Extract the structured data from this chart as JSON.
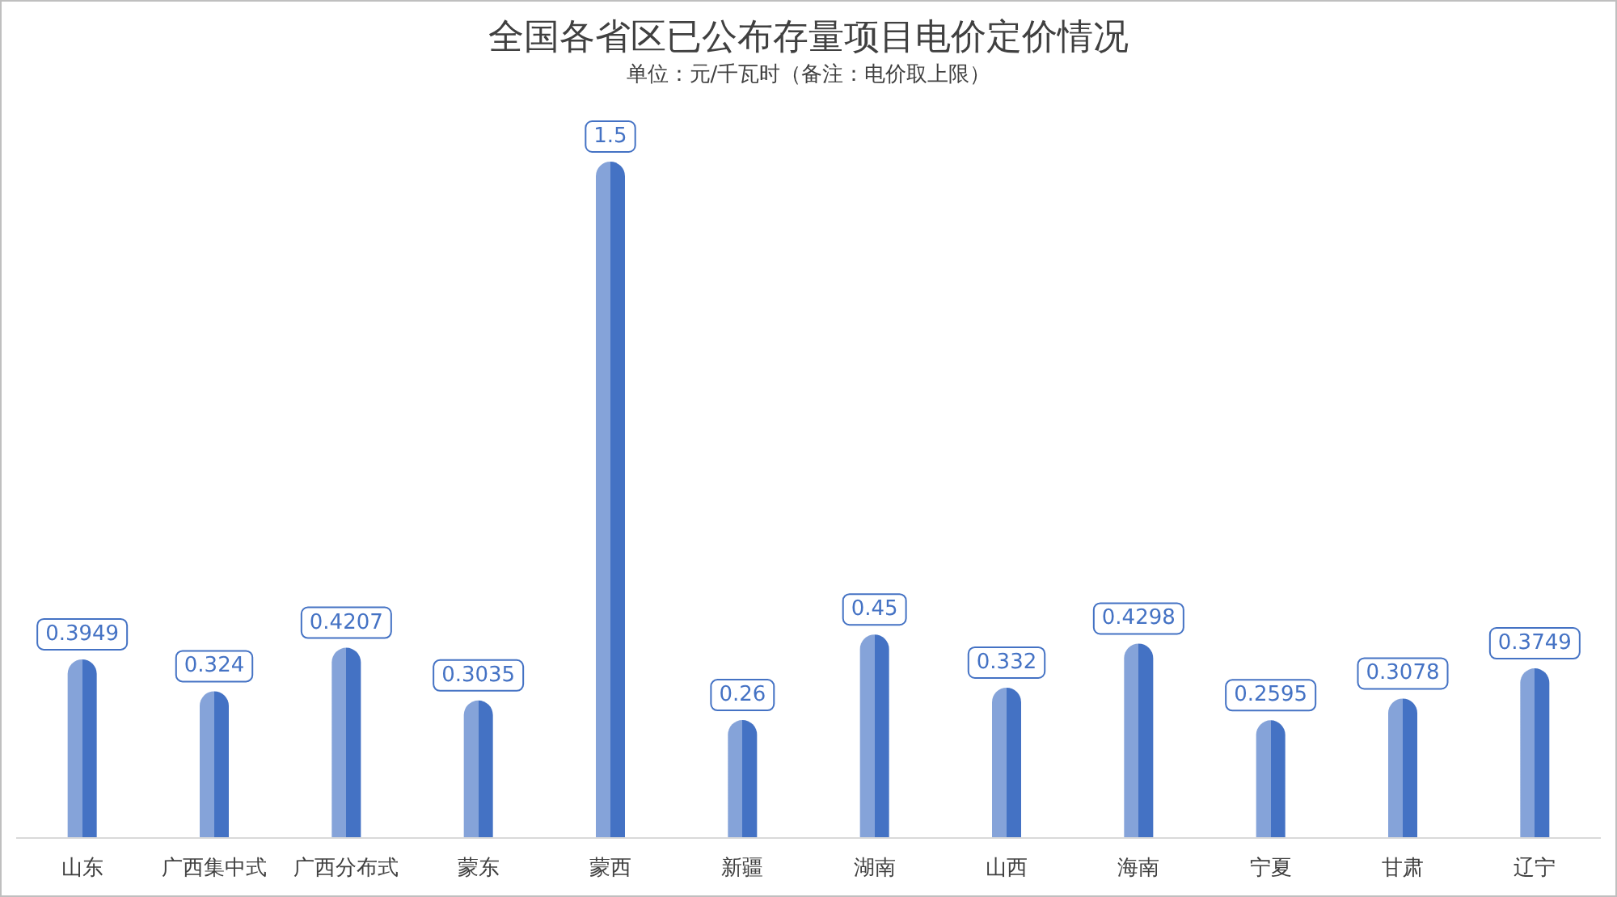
{
  "chart_data": {
    "type": "bar",
    "title": "全国各省区已公布存量项目电价定价情况",
    "subtitle": "单位：元/千瓦时（备注：电价取上限）",
    "categories": [
      "山东",
      "广西集中式",
      "广西分布式",
      "蒙东",
      "蒙西",
      "新疆",
      "湖南",
      "山西",
      "海南",
      "宁夏",
      "甘肃",
      "辽宁"
    ],
    "values": [
      0.3949,
      0.324,
      0.4207,
      0.3035,
      1.5,
      0.26,
      0.45,
      0.332,
      0.4298,
      0.2595,
      0.3078,
      0.3749
    ],
    "color": "#4472c4",
    "data_labels": true
  }
}
